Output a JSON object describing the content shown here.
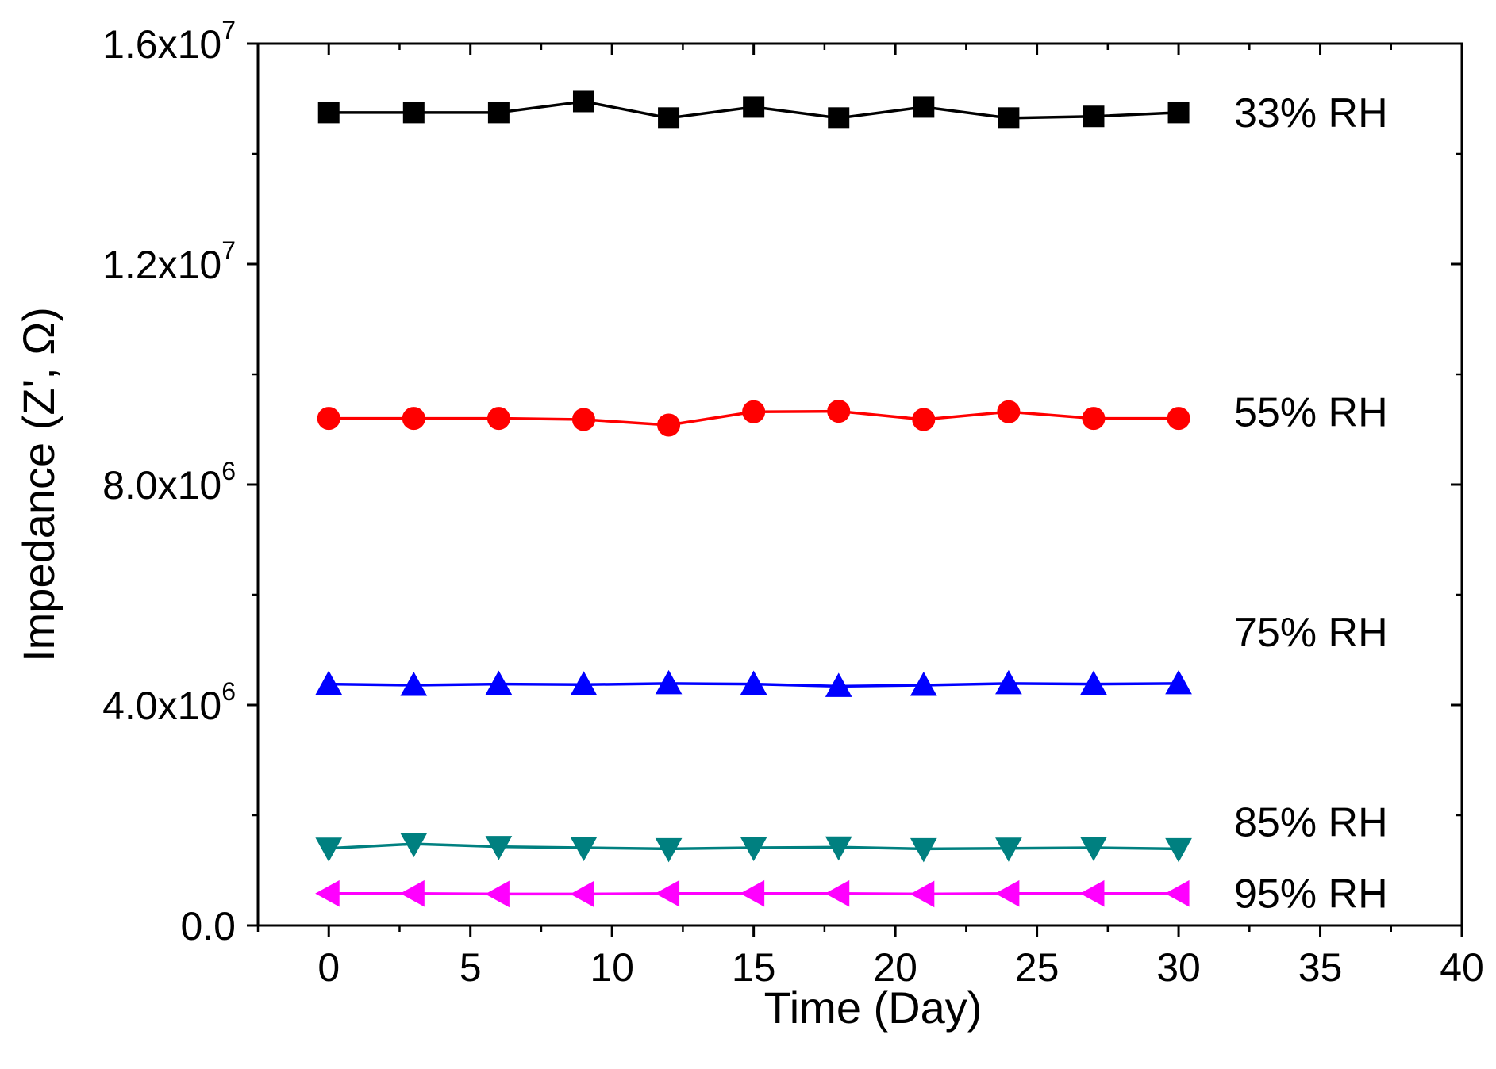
{
  "chart_data": {
    "type": "line",
    "title": "",
    "xlabel": "Time (Day)",
    "ylabel": "Impedance (Z', Ω)",
    "xlim": [
      -2.5,
      40
    ],
    "ylim": [
      0,
      16000000
    ],
    "x_ticks": [
      0,
      5,
      10,
      15,
      20,
      25,
      30,
      35,
      40
    ],
    "x_tick_labels": [
      "0",
      "5",
      "10",
      "15",
      "20",
      "25",
      "30",
      "35",
      "40"
    ],
    "y_ticks": [
      {
        "value": 0,
        "mantissa": "0.0",
        "exponent": ""
      },
      {
        "value": 4000000,
        "mantissa": "4.0x10",
        "exponent": "6"
      },
      {
        "value": 8000000,
        "mantissa": "8.0x10",
        "exponent": "6"
      },
      {
        "value": 12000000,
        "mantissa": "1.2x10",
        "exponent": "7"
      },
      {
        "value": 16000000,
        "mantissa": "1.6x10",
        "exponent": "7"
      }
    ],
    "grid": false,
    "legend": "series labels at right end of each line",
    "x": [
      0,
      3,
      6,
      9,
      12,
      15,
      18,
      21,
      24,
      27,
      30
    ],
    "series": [
      {
        "name": "33% RH",
        "marker": "square",
        "color": "#000000",
        "values": [
          14750000,
          14750000,
          14750000,
          14950000,
          14650000,
          14850000,
          14650000,
          14850000,
          14650000,
          14680000,
          14750000
        ]
      },
      {
        "name": "55% RH",
        "marker": "circle",
        "color": "#ff0000",
        "values": [
          9200000,
          9200000,
          9200000,
          9180000,
          9080000,
          9320000,
          9330000,
          9180000,
          9320000,
          9200000,
          9200000
        ]
      },
      {
        "name": "75% RH",
        "marker": "triangle-up",
        "color": "#0000ff",
        "values": [
          4380000,
          4360000,
          4380000,
          4370000,
          4390000,
          4380000,
          4340000,
          4360000,
          4390000,
          4380000,
          4390000
        ]
      },
      {
        "name": "85% RH",
        "marker": "triangle-down",
        "color": "#008080",
        "values": [
          1400000,
          1480000,
          1430000,
          1410000,
          1390000,
          1410000,
          1420000,
          1390000,
          1400000,
          1410000,
          1390000
        ]
      },
      {
        "name": "95% RH",
        "marker": "triangle-left",
        "color": "#ff00ff",
        "values": [
          580000,
          580000,
          570000,
          570000,
          580000,
          580000,
          580000,
          570000,
          580000,
          580000,
          580000
        ]
      }
    ]
  }
}
